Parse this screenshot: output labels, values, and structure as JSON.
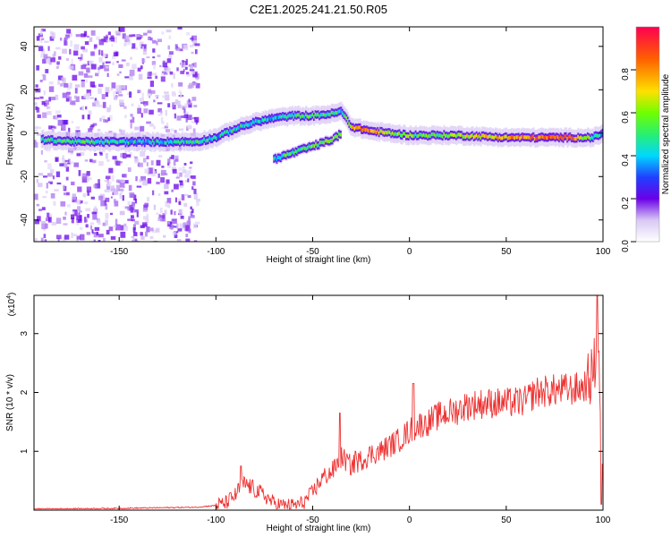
{
  "figure_title": "C2E1.2025.241.21.50.R05",
  "colors": {
    "snr_line": "#ee3333",
    "spectrum_stops": [
      "#ffffff",
      "#d8c8f4",
      "#a070f0",
      "#6a00e8",
      "#2040ff",
      "#00d8ff",
      "#28f070",
      "#70ff00",
      "#ffe000",
      "#ff6000",
      "#ff0050"
    ]
  },
  "chart_data": [
    {
      "type": "heatmap",
      "title": "",
      "xlabel": "Height of straight line (km)",
      "ylabel": "Frequency (Hz)",
      "xlim": [
        -194,
        100
      ],
      "ylim": [
        -50,
        49
      ],
      "x_ticks": [
        -150,
        -100,
        -50,
        0,
        50,
        100
      ],
      "x_tick_labels": [
        "-150",
        "-100",
        "-50",
        "0",
        "50",
        "100"
      ],
      "y_ticks": [
        -40,
        -20,
        0,
        20,
        40
      ],
      "y_tick_labels": [
        "-40",
        "-20",
        "0",
        "20",
        "40"
      ],
      "colorbar": {
        "label": "Normalized spectral amplitude",
        "range": [
          0,
          1
        ],
        "ticks": [
          0.0,
          0.2,
          0.4,
          0.6,
          0.8
        ],
        "tick_labels": [
          "0.0",
          "0.2",
          "0.4",
          "0.6",
          "0.8"
        ]
      },
      "ridge_main": [
        {
          "x": -190,
          "f": -3,
          "a": 0.45
        },
        {
          "x": -170,
          "f": -4,
          "a": 0.5
        },
        {
          "x": -150,
          "f": -4,
          "a": 0.45
        },
        {
          "x": -130,
          "f": -4,
          "a": 0.4
        },
        {
          "x": -110,
          "f": -4,
          "a": 0.45
        },
        {
          "x": -100,
          "f": -2,
          "a": 0.4
        },
        {
          "x": -90,
          "f": 2,
          "a": 0.45
        },
        {
          "x": -80,
          "f": 5,
          "a": 0.45
        },
        {
          "x": -70,
          "f": 7,
          "a": 0.4
        },
        {
          "x": -60,
          "f": 8,
          "a": 0.45
        },
        {
          "x": -50,
          "f": 8,
          "a": 0.5
        },
        {
          "x": -40,
          "f": 9,
          "a": 0.5
        },
        {
          "x": -35,
          "f": 10,
          "a": 0.45
        },
        {
          "x": -30,
          "f": 3,
          "a": 0.7
        },
        {
          "x": -25,
          "f": 2,
          "a": 0.85
        },
        {
          "x": -20,
          "f": 1,
          "a": 0.8
        },
        {
          "x": -10,
          "f": 0,
          "a": 0.6
        },
        {
          "x": 0,
          "f": -1,
          "a": 0.55
        },
        {
          "x": 10,
          "f": -1,
          "a": 0.55
        },
        {
          "x": 25,
          "f": -1,
          "a": 0.6
        },
        {
          "x": 50,
          "f": -2,
          "a": 0.75
        },
        {
          "x": 70,
          "f": -2,
          "a": 0.85
        },
        {
          "x": 85,
          "f": -2,
          "a": 0.8
        },
        {
          "x": 95,
          "f": -2,
          "a": 0.5
        },
        {
          "x": 100,
          "f": 0,
          "a": 0.35
        }
      ],
      "ridge_lower": [
        {
          "x": -70,
          "f": -12,
          "a": 0.45
        },
        {
          "x": -60,
          "f": -9,
          "a": 0.5
        },
        {
          "x": -50,
          "f": -6,
          "a": 0.55
        },
        {
          "x": -40,
          "f": -3,
          "a": 0.6
        },
        {
          "x": -35,
          "f": 0,
          "a": 0.55
        }
      ]
    },
    {
      "type": "line",
      "title": "",
      "xlabel": "Height of straight line (km)",
      "ylabel": "SNR (10 * v/v)",
      "scale_label": "(x10",
      "scale_exponent": "4",
      "xlim": [
        -194,
        100
      ],
      "ylim": [
        0,
        3.65
      ],
      "x_ticks": [
        -150,
        -100,
        -50,
        0,
        50,
        100
      ],
      "x_tick_labels": [
        "-150",
        "-100",
        "-50",
        "0",
        "50",
        "100"
      ],
      "y_ticks": [
        1,
        2,
        3
      ],
      "y_tick_labels": [
        "1",
        "2",
        "3"
      ],
      "series": [
        {
          "name": "SNR",
          "x": [
            -194,
            -150,
            -110,
            -100,
            -95,
            -90,
            -88,
            -85,
            -80,
            -75,
            -70,
            -65,
            -60,
            -55,
            -50,
            -45,
            -40,
            -35,
            -30,
            -25,
            -20,
            -15,
            -10,
            -5,
            0,
            5,
            10,
            15,
            20,
            25,
            30,
            40,
            50,
            60,
            65,
            70,
            80,
            85,
            90,
            93,
            96,
            97,
            98,
            99,
            100
          ],
          "values": [
            0.02,
            0.03,
            0.05,
            0.08,
            0.12,
            0.25,
            0.35,
            0.45,
            0.35,
            0.25,
            0.12,
            0.08,
            0.08,
            0.12,
            0.3,
            0.55,
            0.65,
            0.9,
            0.75,
            0.85,
            0.95,
            1.0,
            1.1,
            1.2,
            1.35,
            1.45,
            1.5,
            1.6,
            1.65,
            1.7,
            1.78,
            1.82,
            1.82,
            1.85,
            2.0,
            2.02,
            2.05,
            2.05,
            2.1,
            2.2,
            2.5,
            3.6,
            2.6,
            1.0,
            0.15
          ],
          "spikes": [
            {
              "x": -87,
              "y": 0.75
            },
            {
              "x": -36,
              "y": 1.65
            },
            {
              "x": -28,
              "y": 1.0
            },
            {
              "x": 2,
              "y": 2.15
            },
            {
              "x": 8,
              "y": 1.6
            },
            {
              "x": 97,
              "y": 3.65
            },
            {
              "x": 99,
              "y": 0.1
            }
          ]
        }
      ]
    }
  ]
}
